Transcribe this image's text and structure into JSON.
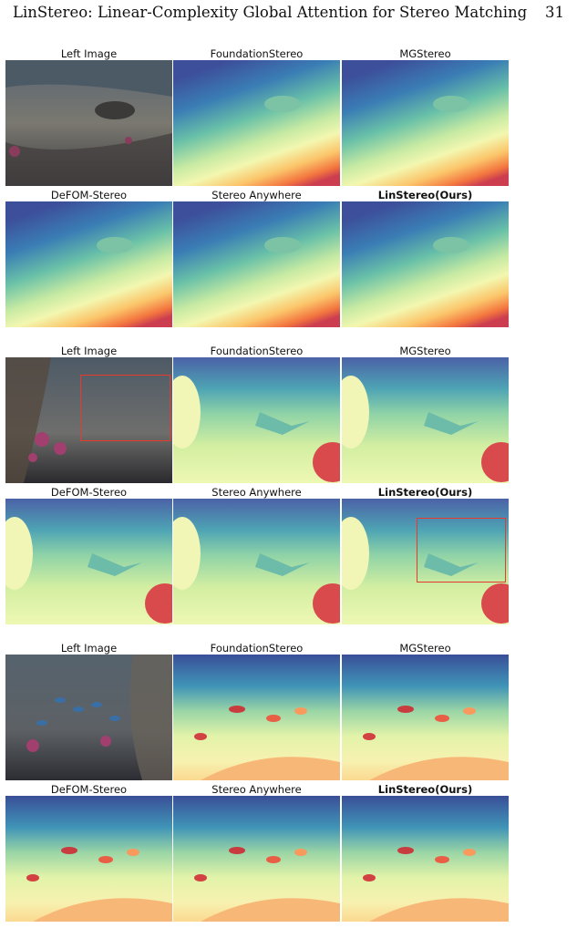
{
  "header": {
    "title": "LinStereo: Linear-Complexity Global Attention for Stereo Matching",
    "page_number": "31"
  },
  "labels": {
    "left": "Left Image",
    "foundation": "FoundationStereo",
    "mg": "MGStereo",
    "defom": "DeFOM-Stereo",
    "anywhere": "Stereo Anywhere",
    "ours": "LinStereo(Ours)"
  }
}
